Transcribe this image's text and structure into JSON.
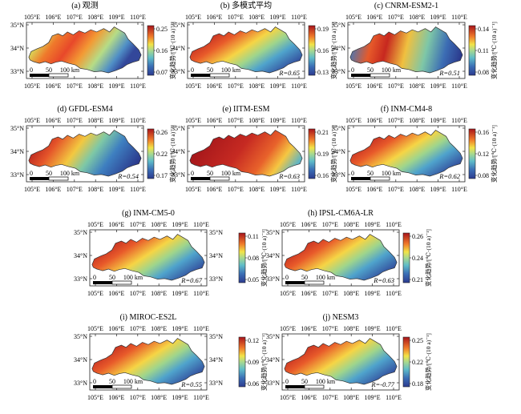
{
  "colorbar_title": "变化趋势/[℃·(10 a)⁻¹]",
  "lon_labels": [
    "105°E",
    "106°E",
    "107°E",
    "108°E",
    "109°E",
    "110°E"
  ],
  "lat_labels": [
    "35°N",
    "34°N",
    "33°N"
  ],
  "scalebar": {
    "ticks": [
      "0",
      "50",
      "100 km"
    ]
  },
  "icons": {
    "colormap": "jet-like (blue → cyan → yellow → red)"
  },
  "colors": {
    "low": "#2c3b8f",
    "mid": "#f2e447",
    "high": "#a8141b",
    "region_border": "#333333"
  },
  "panels": [
    {
      "id": "a",
      "title": "(a) 观测",
      "ticks": [
        "0.25",
        "0.16",
        "0.07"
      ],
      "r": ""
    },
    {
      "id": "b",
      "title": "(b) 多模式平均",
      "ticks": [
        "0.19",
        "0.16",
        "0.13"
      ],
      "r": "R=0.65"
    },
    {
      "id": "c",
      "title": "(c) CNRM-ESM2-1",
      "ticks": [
        "0.14",
        "0.11",
        "0.08"
      ],
      "r": "R=0.51"
    },
    {
      "id": "d",
      "title": "(d) GFDL-ESM4",
      "ticks": [
        "0.26",
        "0.22",
        "0.17"
      ],
      "r": "R=0.54"
    },
    {
      "id": "e",
      "title": "(e) IITM-ESM",
      "ticks": [
        "0.21",
        "0.19",
        "0.16"
      ],
      "r": "R=0.63"
    },
    {
      "id": "f",
      "title": "(f) INM-CM4-8",
      "ticks": [
        "0.16",
        "0.12",
        "0.08"
      ],
      "r": "R=0.62"
    },
    {
      "id": "g",
      "title": "(g) INM-CM5-0",
      "ticks": [
        "0.11",
        "0.08",
        "0.05"
      ],
      "r": "R=0.67"
    },
    {
      "id": "h",
      "title": "(h) IPSL-CM6A-LR",
      "ticks": [
        "0.26",
        "0.24",
        "0.21"
      ],
      "r": "R=0.63"
    },
    {
      "id": "i",
      "title": "(i) MIROC-ES2L",
      "ticks": [
        "0.12",
        "0.09",
        "0.06"
      ],
      "r": "R=0.55"
    },
    {
      "id": "j",
      "title": "(j) NESM3",
      "ticks": [
        "0.25",
        "0.22",
        "0.18"
      ],
      "r": "R=-0.77"
    }
  ]
}
